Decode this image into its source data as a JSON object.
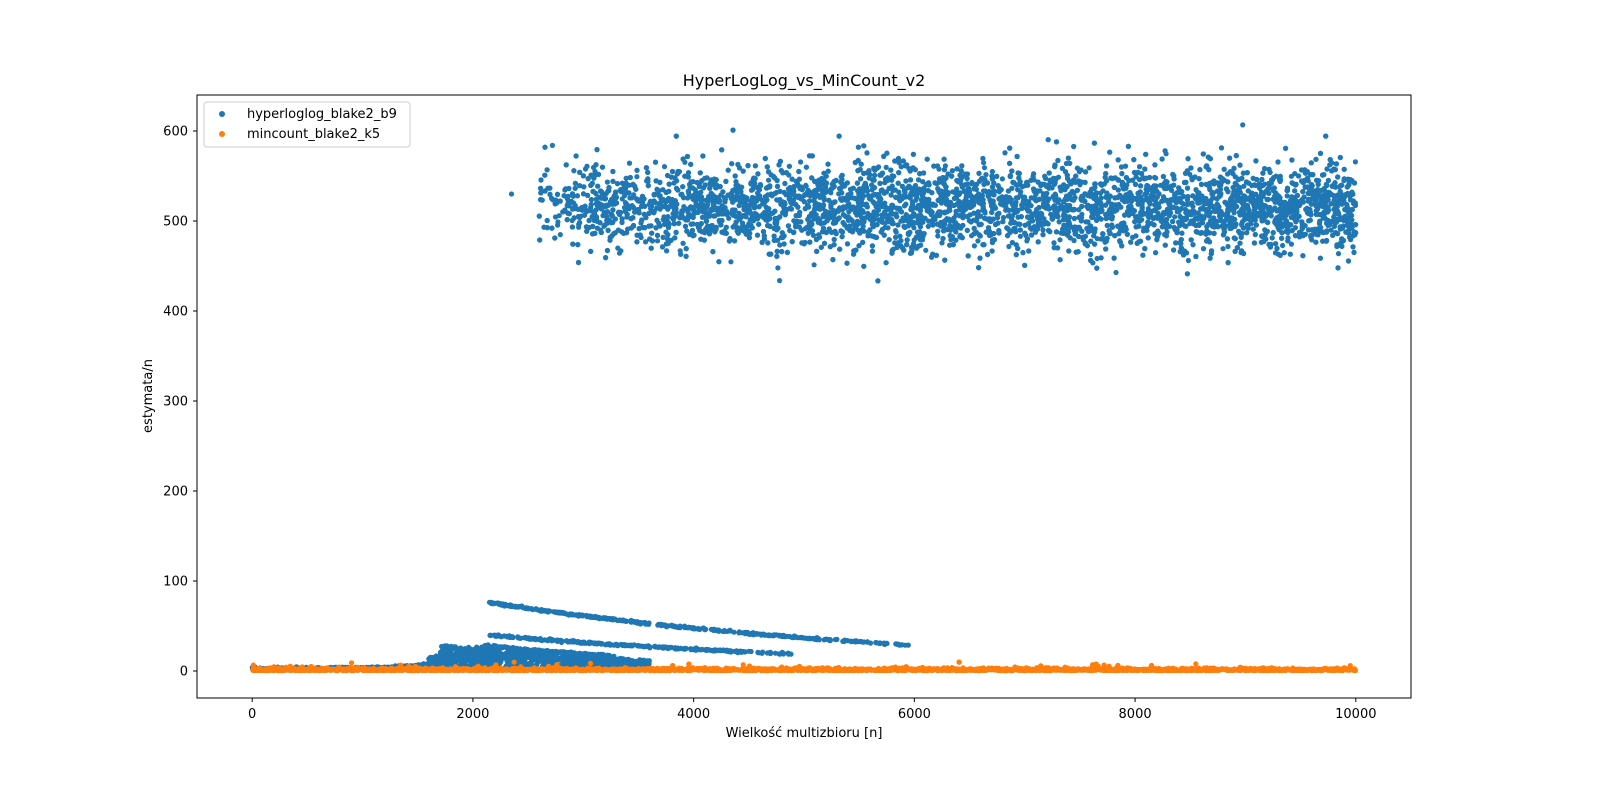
{
  "chart_data": {
    "type": "scatter",
    "title": "HyperLogLog_vs_MinCount_v2",
    "xlabel": "Wielkość multizbioru [n]",
    "ylabel": "estymata/n",
    "xlim": [
      -500,
      10500
    ],
    "ylim": [
      -30,
      640
    ],
    "xticks": [
      0,
      2000,
      4000,
      6000,
      8000,
      10000
    ],
    "yticks": [
      0,
      100,
      200,
      300,
      400,
      500,
      600
    ],
    "grid": false,
    "legend": "top-left",
    "series": [
      {
        "name": "hyperloglog_blake2_b9",
        "color": "#1f77b4",
        "description_values": {
          "main_band": {
            "x_range": [
              2600,
              10000
            ],
            "y_center": 515,
            "y_spread": [
              430,
              610
            ]
          },
          "low_branches": [
            {
              "x_range": [
                2150,
                5950
              ],
              "y_at_start": 76,
              "y_at_end": 29
            },
            {
              "x_range": [
                2150,
                4900
              ],
              "y_at_start": 40,
              "y_at_end": 19
            },
            {
              "x_range": [
                2100,
                3300
              ],
              "y_at_start": 28,
              "y_at_end": 17
            },
            {
              "x_range": [
                2050,
                3000
              ],
              "y_at_start": 20,
              "y_at_end": 12
            }
          ],
          "rising_curve": {
            "x_range": [
              0,
              2200
            ],
            "y_at_start": 1,
            "y_at_end": 20
          }
        }
      },
      {
        "name": "mincount_blake2_k5",
        "color": "#ff7f0e",
        "description_values": {
          "x_range": [
            0,
            10000
          ],
          "y_center": 1,
          "y_spread": [
            -1,
            10
          ]
        }
      }
    ]
  }
}
